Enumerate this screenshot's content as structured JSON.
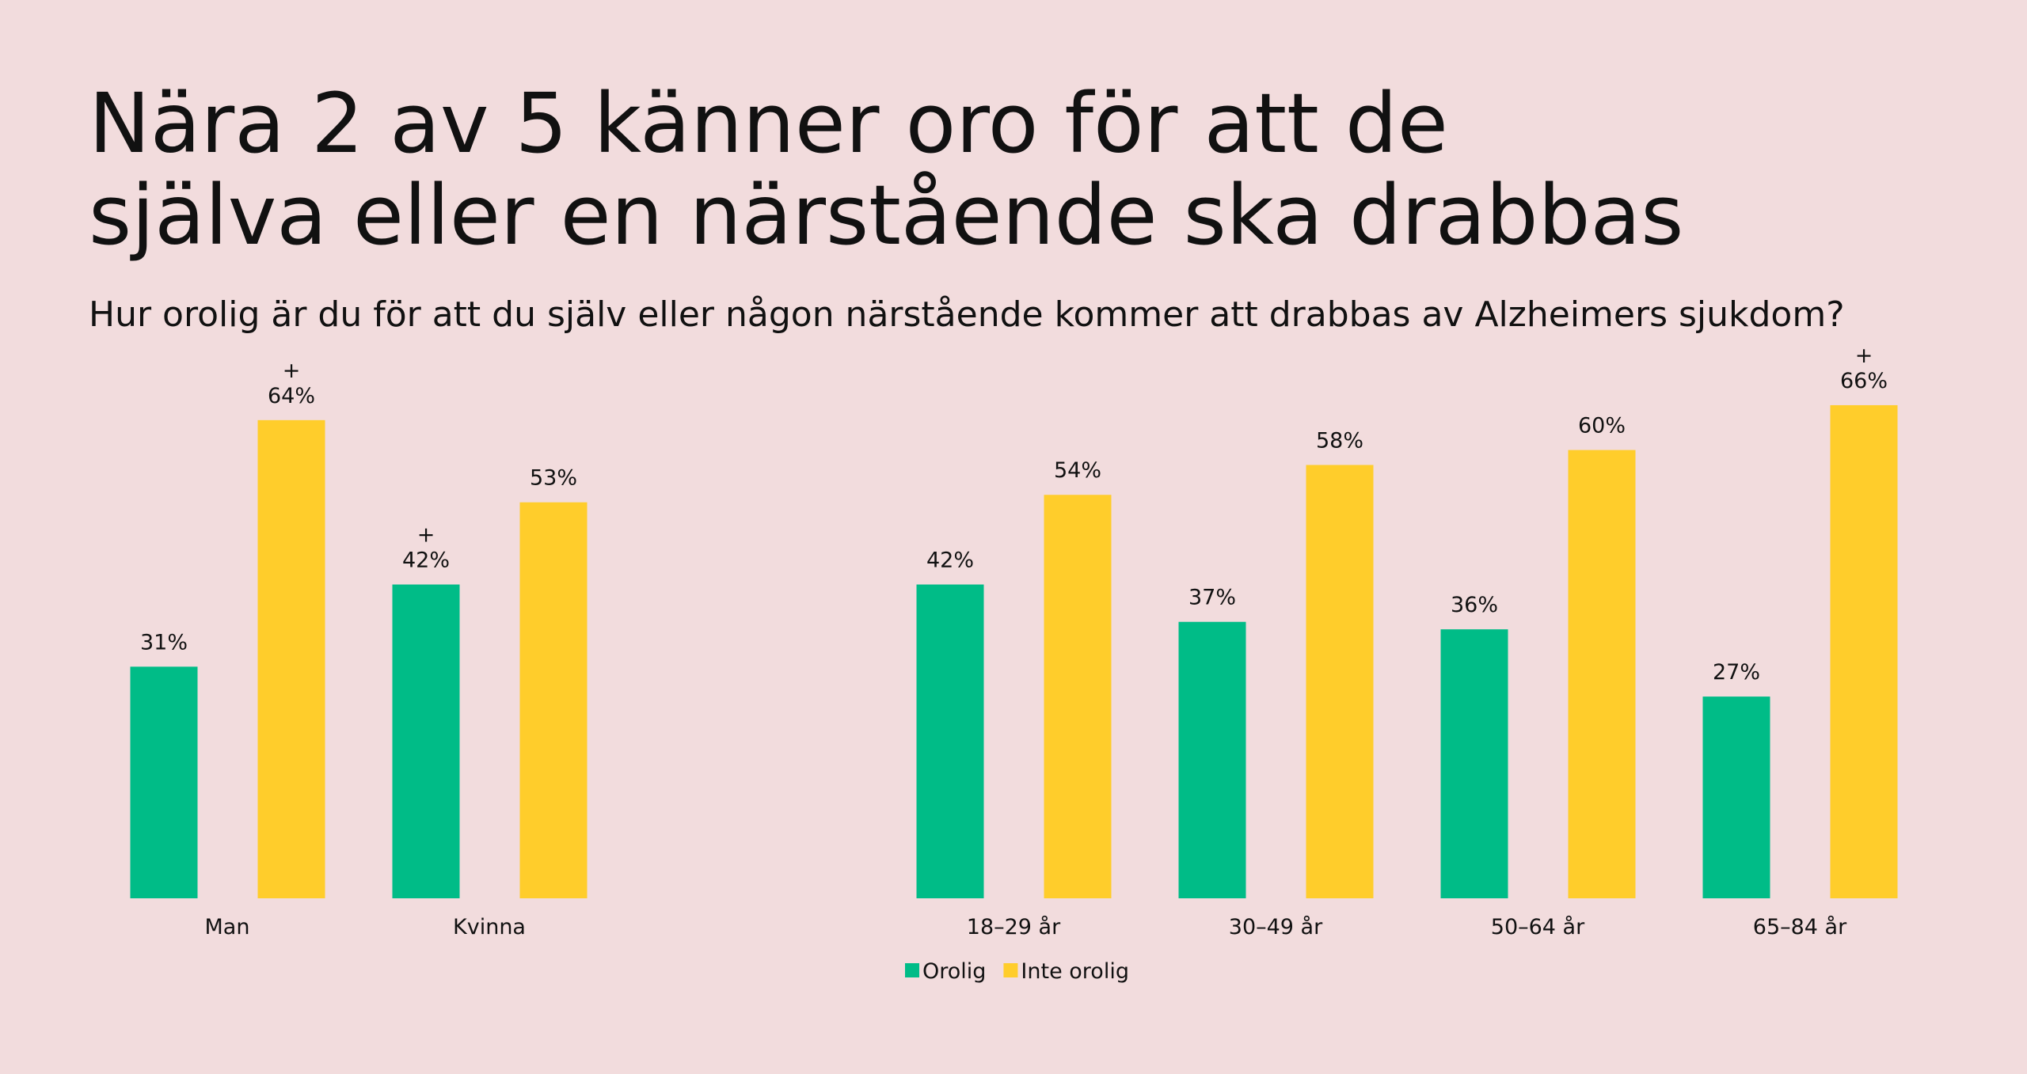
{
  "title": "Nära 2 av 5 känner oro för att de själva eller en närstående ska drabbas",
  "subtitle": "Hur orolig är du för att du själv eller någon närstående kommer att drabbas av Alzheimers sjukdom?",
  "chart_data": [
    {
      "type": "bar",
      "categories": [
        "Man",
        "Kvinna"
      ],
      "ylim": [
        0,
        100
      ],
      "series": [
        {
          "name": "Orolig",
          "color": "#00bc87",
          "values": [
            31,
            42
          ],
          "value_labels": [
            "31%",
            "42%"
          ],
          "notes": [
            null,
            "+"
          ]
        },
        {
          "name": "Inte orolig",
          "color": "#ffcd2b",
          "values": [
            64,
            53
          ],
          "value_labels": [
            "64%",
            "53%"
          ],
          "notes": [
            "+",
            null
          ]
        }
      ]
    },
    {
      "type": "bar",
      "categories": [
        "18–29 år",
        "30–49 år",
        "50–64 år",
        "65–84 år"
      ],
      "ylim": [
        0,
        100
      ],
      "series": [
        {
          "name": "Orolig",
          "color": "#00bc87",
          "values": [
            42,
            37,
            36,
            27
          ],
          "value_labels": [
            "42%",
            "37%",
            "36%",
            "27%"
          ],
          "notes": [
            null,
            null,
            null,
            null
          ]
        },
        {
          "name": "Inte orolig",
          "color": "#ffcd2b",
          "values": [
            54,
            58,
            60,
            66
          ],
          "value_labels": [
            "54%",
            "58%",
            "60%",
            "66%"
          ],
          "notes": [
            null,
            null,
            null,
            "+"
          ]
        }
      ]
    }
  ]
}
